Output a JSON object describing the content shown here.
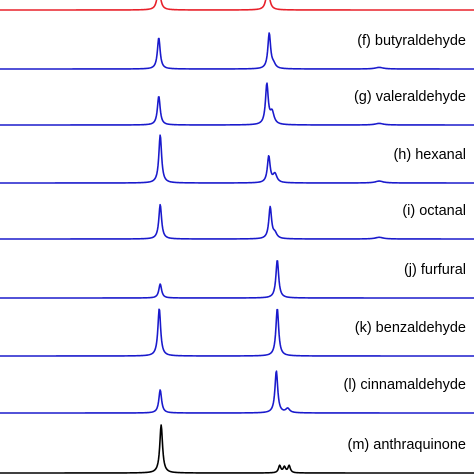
{
  "chart_data": {
    "type": "line",
    "title": "",
    "xlabel": "",
    "ylabel": "",
    "grid": false,
    "legend": "none",
    "x_range": [
      0,
      1
    ],
    "note_units": "x and y axes are not labelled in the image; peak positions and heights are given on a normalized 0–1 scale",
    "series": [
      {
        "name": "",
        "color": "#e8202a",
        "peaks": [
          {
            "x": 0.335,
            "height": 0.6,
            "width": 0.004
          },
          {
            "x": 0.565,
            "height": 0.6,
            "width": 0.004
          }
        ]
      },
      {
        "name": "(f) butyraldehyde",
        "color": "#1a1acc",
        "peaks": [
          {
            "x": 0.335,
            "height": 0.78,
            "width": 0.0035
          },
          {
            "x": 0.568,
            "height": 0.88,
            "width": 0.0035
          },
          {
            "x": 0.577,
            "height": 0.1,
            "width": 0.005
          },
          {
            "x": 0.8,
            "height": 0.04,
            "width": 0.01
          }
        ]
      },
      {
        "name": "(g) valeraldehyde",
        "color": "#1a1acc",
        "peaks": [
          {
            "x": 0.335,
            "height": 0.72,
            "width": 0.0035
          },
          {
            "x": 0.563,
            "height": 1.0,
            "width": 0.0035
          },
          {
            "x": 0.574,
            "height": 0.3,
            "width": 0.005
          },
          {
            "x": 0.8,
            "height": 0.04,
            "width": 0.01
          }
        ]
      },
      {
        "name": "(h) hexanal",
        "color": "#1a1acc",
        "peaks": [
          {
            "x": 0.338,
            "height": 1.0,
            "width": 0.0035
          },
          {
            "x": 0.567,
            "height": 0.55,
            "width": 0.0035
          },
          {
            "x": 0.58,
            "height": 0.18,
            "width": 0.005
          },
          {
            "x": 0.8,
            "height": 0.04,
            "width": 0.01
          }
        ]
      },
      {
        "name": "(i) octanal",
        "color": "#1a1acc",
        "peaks": [
          {
            "x": 0.338,
            "height": 0.82,
            "width": 0.0035
          },
          {
            "x": 0.57,
            "height": 0.75,
            "width": 0.0035
          },
          {
            "x": 0.58,
            "height": 0.12,
            "width": 0.005
          },
          {
            "x": 0.8,
            "height": 0.04,
            "width": 0.01
          }
        ]
      },
      {
        "name": "(j) furfural",
        "color": "#1a1acc",
        "peaks": [
          {
            "x": 0.338,
            "height": 0.35,
            "width": 0.0035
          },
          {
            "x": 0.585,
            "height": 0.95,
            "width": 0.0035
          }
        ]
      },
      {
        "name": "(k) benzaldehyde",
        "color": "#1a1acc",
        "peaks": [
          {
            "x": 0.336,
            "height": 0.95,
            "width": 0.0035
          },
          {
            "x": 0.585,
            "height": 0.95,
            "width": 0.0035
          }
        ]
      },
      {
        "name": "(l) cinnamaldehyde",
        "color": "#1a1acc",
        "peaks": [
          {
            "x": 0.338,
            "height": 0.55,
            "width": 0.0035
          },
          {
            "x": 0.583,
            "height": 1.0,
            "width": 0.0035
          },
          {
            "x": 0.607,
            "height": 0.1,
            "width": 0.005
          }
        ]
      },
      {
        "name": "(m) anthraquinone",
        "color": "#000000",
        "peaks": [
          {
            "x": 0.34,
            "height": 1.0,
            "width": 0.0035
          },
          {
            "x": 0.59,
            "height": 0.15,
            "width": 0.003
          },
          {
            "x": 0.6,
            "height": 0.12,
            "width": 0.003
          },
          {
            "x": 0.61,
            "height": 0.15,
            "width": 0.003
          }
        ]
      }
    ]
  }
}
